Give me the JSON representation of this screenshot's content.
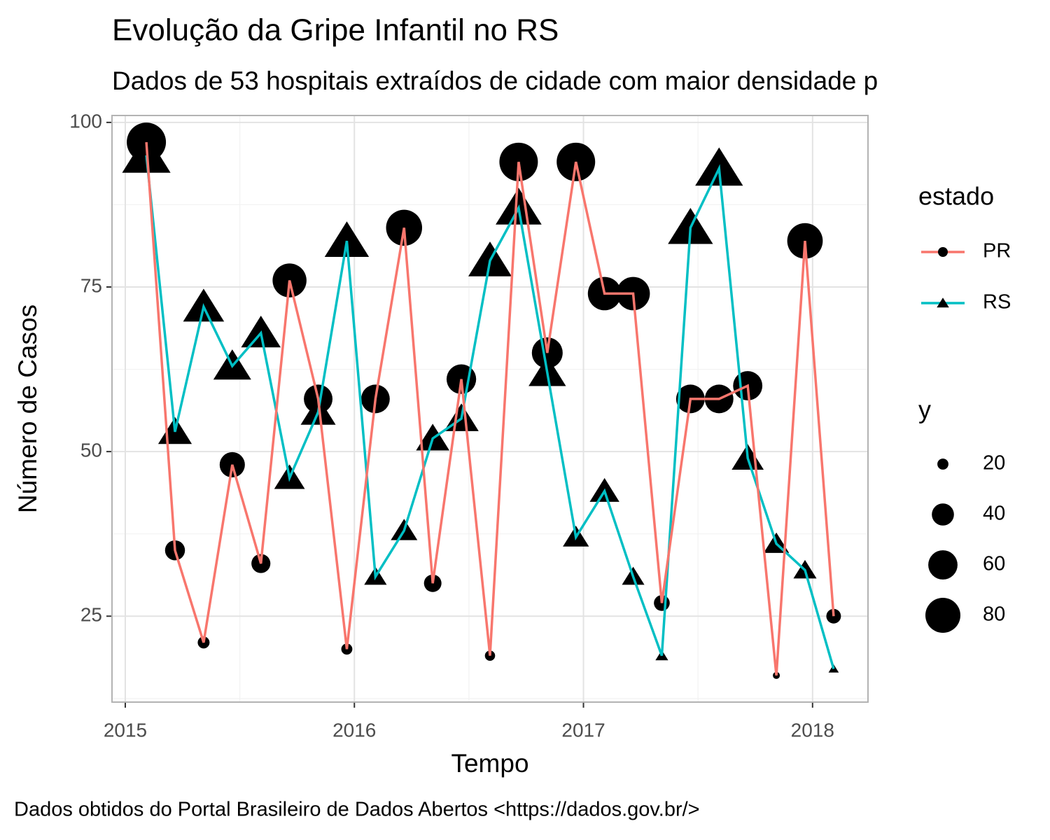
{
  "chart_data": {
    "type": "line",
    "title": "Evolução da Gripe Infantil no RS",
    "subtitle": "Dados de 53 hospitais extraídos de cidade com maior densidade p",
    "caption": "Dados obtidos do Portal Brasileiro de Dados Abertos <https://dados.gov.br/>",
    "x_label": "Tempo",
    "y_label": "Número de Casos",
    "x": [
      2015.092,
      2015.217,
      2015.342,
      2015.467,
      2015.592,
      2015.717,
      2015.842,
      2015.967,
      2016.092,
      2016.217,
      2016.342,
      2016.467,
      2016.592,
      2016.717,
      2016.842,
      2016.967,
      2017.092,
      2017.217,
      2017.342,
      2017.467,
      2017.592,
      2017.717,
      2017.842,
      2017.967,
      2018.092
    ],
    "series": [
      {
        "name": "PR",
        "color": "#F8766D",
        "marker": "circle",
        "values": [
          97,
          35,
          21,
          48,
          33,
          76,
          58,
          20,
          58,
          84,
          30,
          61,
          19,
          94,
          65,
          94,
          74,
          74,
          27,
          58,
          58,
          60,
          16,
          82,
          25
        ]
      },
      {
        "name": "RS",
        "color": "#00BFC4",
        "marker": "triangle",
        "values": [
          95,
          53,
          72,
          63,
          68,
          46,
          56,
          82,
          31,
          38,
          52,
          55,
          79,
          87,
          62,
          37,
          44,
          31,
          19,
          84,
          93,
          49,
          36,
          32,
          17
        ]
      }
    ],
    "marker_color": "#000000",
    "xlim": [
      2014.942,
      2018.242
    ],
    "ylim": [
      11.95,
      101.05
    ],
    "xticks": [
      2015,
      2016,
      2017,
      2018
    ],
    "yticks": [
      25,
      50,
      75,
      100
    ],
    "grid": true,
    "legend_position": "right",
    "color_legend_title": "estado",
    "size_legend": {
      "title": "y",
      "values": [
        20,
        40,
        60,
        80
      ]
    }
  }
}
